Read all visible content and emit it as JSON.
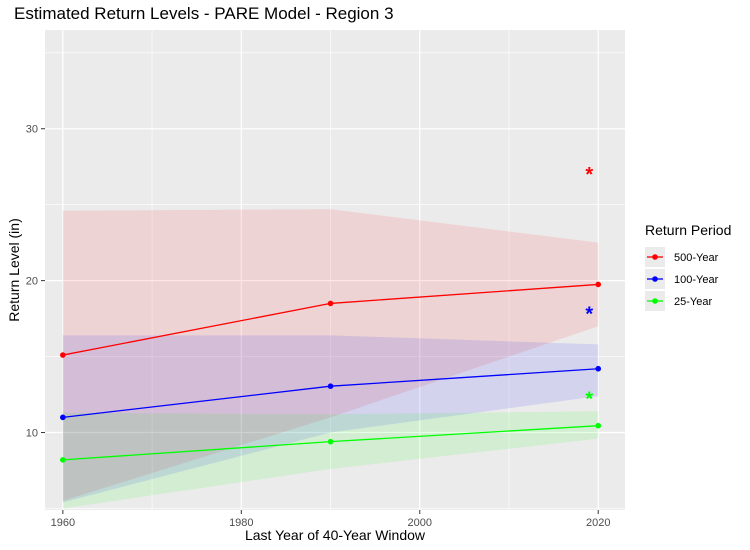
{
  "chart_data": {
    "type": "line",
    "title": "Estimated Return Levels - PARE Model - Region 3",
    "xlabel": "Last Year of 40-Year Window",
    "ylabel": "Return Level (in)",
    "xlim": [
      1958,
      2023
    ],
    "ylim": [
      4.9,
      36.5
    ],
    "xticks": [
      1960,
      1980,
      2000,
      2020
    ],
    "yticks": [
      10,
      20,
      30
    ],
    "grid": true,
    "legend": {
      "title": "Return Period",
      "placement": "right"
    },
    "series": [
      {
        "name": "500-Year",
        "color": "#ff0000",
        "x": [
          1960,
          1990,
          2020
        ],
        "y": [
          15.1,
          18.5,
          19.75
        ],
        "lower": [
          5.5,
          11.0,
          17.0
        ],
        "upper": [
          24.6,
          24.7,
          22.5
        ],
        "star": {
          "x": 2019,
          "y": 27.1
        }
      },
      {
        "name": "100-Year",
        "color": "#0000ff",
        "x": [
          1960,
          1990,
          2020
        ],
        "y": [
          11.0,
          13.05,
          14.2
        ],
        "lower": [
          5.4,
          10.0,
          12.4
        ],
        "upper": [
          16.4,
          16.4,
          15.8
        ],
        "star": {
          "x": 2019,
          "y": 17.9
        }
      },
      {
        "name": "25-Year",
        "color": "#00ff00",
        "x": [
          1960,
          1990,
          2020
        ],
        "y": [
          8.2,
          9.4,
          10.45
        ],
        "lower": [
          5.0,
          7.6,
          9.6
        ],
        "upper": [
          11.3,
          11.2,
          11.4
        ],
        "star": {
          "x": 2019,
          "y": 12.3
        }
      }
    ]
  }
}
